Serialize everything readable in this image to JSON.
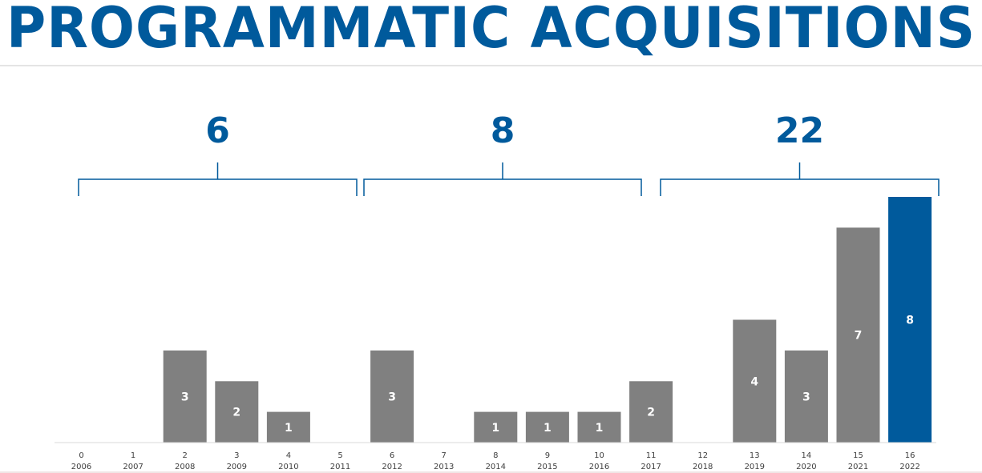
{
  "title": "PROGRAMMATIC ACQUISITIONS",
  "colors": {
    "bar": "#808080",
    "highlight": "#005a9c",
    "bracket": "#005a9c",
    "axis": "#d9d9d9"
  },
  "chart_data": {
    "type": "bar",
    "categories": [
      "2006",
      "2007",
      "2008",
      "2009",
      "2010",
      "2011",
      "2012",
      "2013",
      "2014",
      "2015",
      "2016",
      "2017",
      "2018",
      "2019",
      "2020",
      "2021",
      "2022"
    ],
    "index_labels": [
      "0",
      "1",
      "2",
      "3",
      "4",
      "5",
      "6",
      "7",
      "8",
      "9",
      "10",
      "11",
      "12",
      "13",
      "14",
      "15",
      "16"
    ],
    "values": [
      0,
      0,
      3,
      2,
      1,
      0,
      3,
      0,
      1,
      1,
      1,
      2,
      0,
      4,
      3,
      7,
      8
    ],
    "highlight_index": 16,
    "ylim": [
      0,
      8
    ],
    "groups": [
      {
        "total": "6",
        "from": 0,
        "to": 5
      },
      {
        "total": "8",
        "from": 6,
        "to": 11
      },
      {
        "total": "22",
        "from": 12,
        "to": 16
      }
    ]
  }
}
